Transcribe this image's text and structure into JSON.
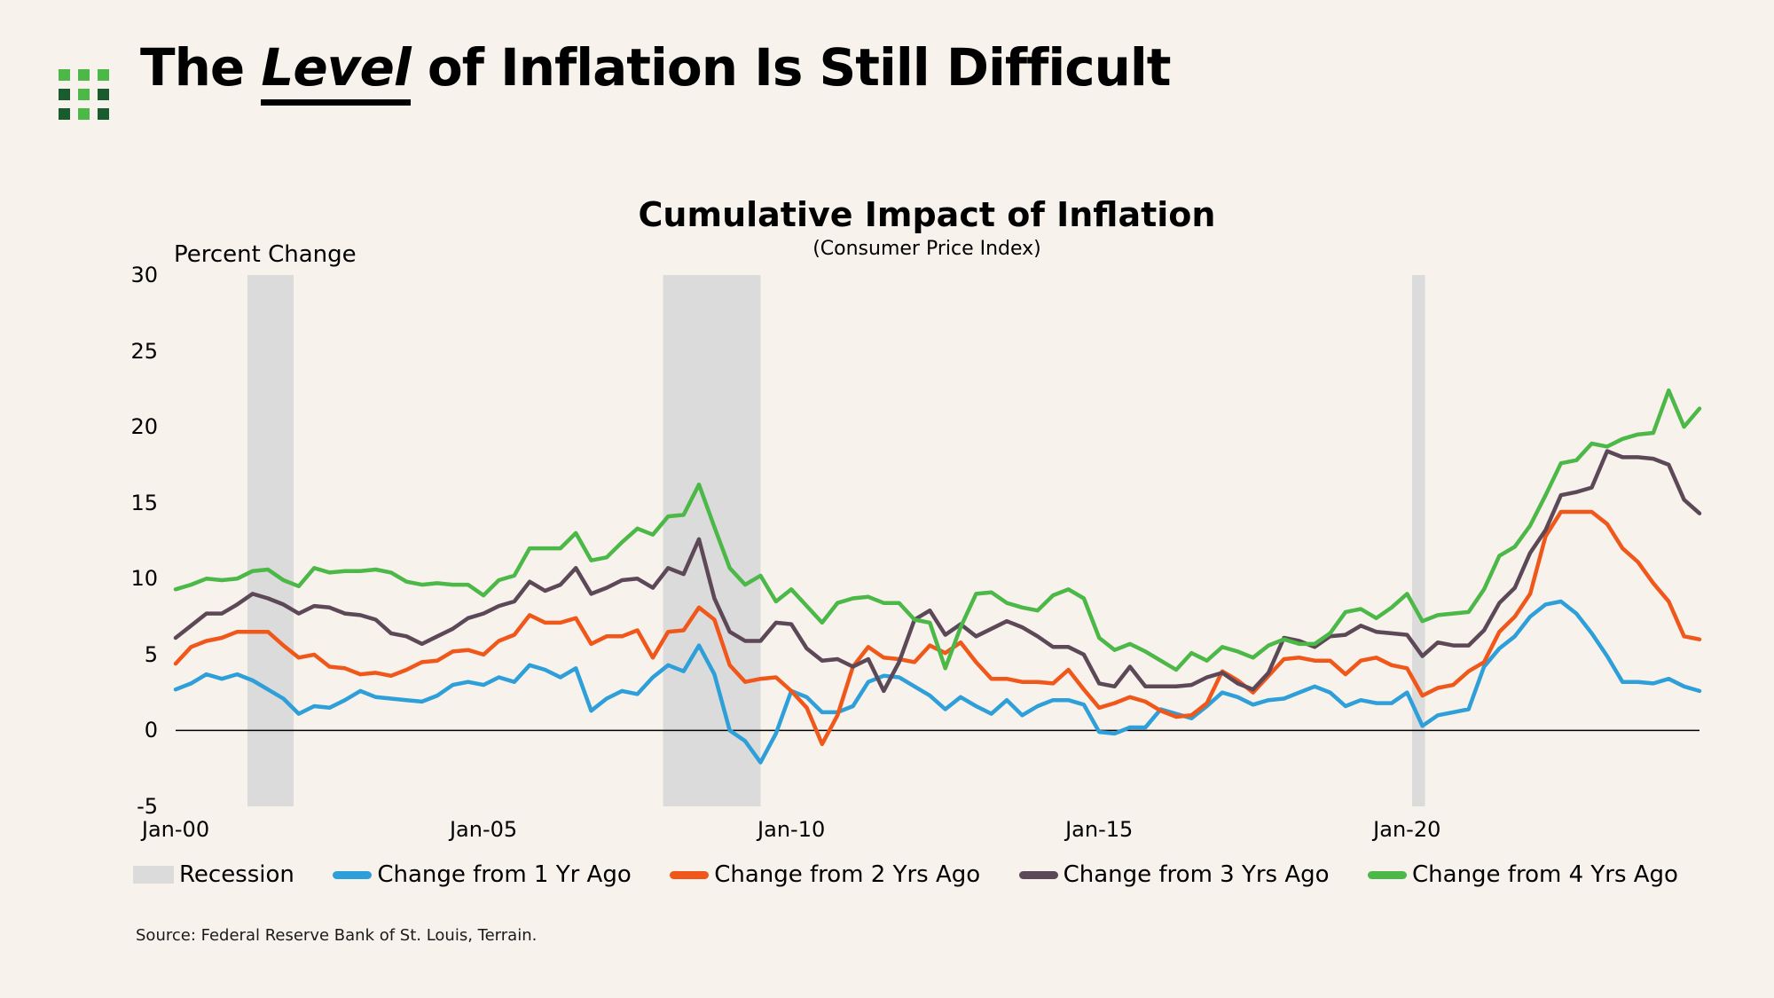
{
  "page": {
    "background": "#F7F2EC"
  },
  "header": {
    "logo": {
      "light_color": "#4CB848",
      "dark_color": "#1A5C2E",
      "pattern": [
        [
          "light",
          "light",
          "light"
        ],
        [
          "dark",
          "light",
          "dark"
        ],
        [
          "dark",
          "light",
          "dark"
        ]
      ]
    },
    "title": {
      "pre": "The ",
      "emphasis": "Level",
      "post": " of Inflation Is Still Difficult"
    }
  },
  "chart": {
    "title": "Cumulative Impact of Inflation",
    "subtitle": "(Consumer Price Index)",
    "y_unit_label": "Percent Change",
    "source": "Source: Federal Reserve Bank of St. Louis, Terrain."
  },
  "chart_data": {
    "type": "line",
    "title": "Cumulative Impact of Inflation",
    "subtitle": "(Consumer Price Index)",
    "ylabel": "Percent Change",
    "ylim": [
      -5,
      30
    ],
    "y_ticks": [
      30,
      25,
      20,
      15,
      10,
      5,
      0,
      -5
    ],
    "x_unit": "months since Jan-2000, quarterly samples",
    "x_tick_labels": [
      "Jan-00",
      "Jan-05",
      "Jan-10",
      "Jan-15",
      "Jan-20"
    ],
    "x_tick_months": [
      0,
      60,
      120,
      180,
      240
    ],
    "x_months": [
      0,
      3,
      6,
      9,
      12,
      15,
      18,
      21,
      24,
      27,
      30,
      33,
      36,
      39,
      42,
      45,
      48,
      51,
      54,
      57,
      60,
      63,
      66,
      69,
      72,
      75,
      78,
      81,
      84,
      87,
      90,
      93,
      96,
      99,
      102,
      105,
      108,
      111,
      114,
      117,
      120,
      123,
      126,
      129,
      132,
      135,
      138,
      141,
      144,
      147,
      150,
      153,
      156,
      159,
      162,
      165,
      168,
      171,
      174,
      177,
      180,
      183,
      186,
      189,
      192,
      195,
      198,
      201,
      204,
      207,
      210,
      213,
      216,
      219,
      222,
      225,
      228,
      231,
      234,
      237,
      240,
      243,
      246,
      249,
      252,
      255,
      258,
      261,
      264,
      267,
      270,
      273,
      276,
      279,
      282,
      285,
      288,
      291,
      294,
      297
    ],
    "grid": "off",
    "legend_position": "bottom",
    "zero_line": true,
    "recessions": {
      "label": "Recession",
      "color": "#DBDBDB",
      "bands_months": [
        [
          14,
          23
        ],
        [
          95,
          114
        ],
        [
          241,
          243.5
        ]
      ]
    },
    "series": [
      {
        "name": "Change from 1 Yr Ago",
        "color": "#2E9FD8",
        "values": [
          2.7,
          3.1,
          3.7,
          3.4,
          3.7,
          3.3,
          2.7,
          2.1,
          1.1,
          1.6,
          1.5,
          2.0,
          2.6,
          2.2,
          2.1,
          2.0,
          1.9,
          2.3,
          3.0,
          3.2,
          3.0,
          3.5,
          3.2,
          4.3,
          4.0,
          3.5,
          4.1,
          1.3,
          2.1,
          2.6,
          2.4,
          3.5,
          4.3,
          3.9,
          5.6,
          3.7,
          0.0,
          -0.7,
          -2.1,
          -0.2,
          2.6,
          2.2,
          1.2,
          1.2,
          1.6,
          3.2,
          3.6,
          3.5,
          2.9,
          2.3,
          1.4,
          2.2,
          1.6,
          1.1,
          2.0,
          1.0,
          1.6,
          2.0,
          2.0,
          1.7,
          -0.1,
          -0.2,
          0.2,
          0.2,
          1.4,
          1.1,
          0.8,
          1.6,
          2.5,
          2.2,
          1.7,
          2.0,
          2.1,
          2.5,
          2.9,
          2.5,
          1.6,
          2.0,
          1.8,
          1.8,
          2.5,
          0.3,
          1.0,
          1.2,
          1.4,
          4.2,
          5.4,
          6.2,
          7.5,
          8.3,
          8.5,
          7.7,
          6.4,
          4.9,
          3.2,
          3.2,
          3.1,
          3.4,
          2.9,
          2.6
        ]
      },
      {
        "name": "Change from 2 Yrs Ago",
        "color": "#F0571A",
        "values": [
          4.4,
          5.5,
          5.9,
          6.1,
          6.5,
          6.5,
          6.5,
          5.6,
          4.8,
          5.0,
          4.2,
          4.1,
          3.7,
          3.8,
          3.6,
          4.0,
          4.5,
          4.6,
          5.2,
          5.3,
          5.0,
          5.9,
          6.3,
          7.6,
          7.1,
          7.1,
          7.4,
          5.7,
          6.2,
          6.2,
          6.6,
          4.8,
          6.5,
          6.6,
          8.1,
          7.3,
          4.3,
          3.2,
          3.4,
          3.5,
          2.6,
          1.5,
          -0.9,
          1.0,
          4.2,
          5.5,
          4.8,
          4.7,
          4.5,
          5.6,
          5.1,
          5.8,
          4.5,
          3.4,
          3.4,
          3.2,
          3.2,
          3.1,
          4.0,
          2.7,
          1.5,
          1.8,
          2.2,
          1.9,
          1.3,
          0.9,
          1.0,
          1.8,
          3.9,
          3.3,
          2.5,
          3.6,
          4.7,
          4.8,
          4.6,
          4.6,
          3.7,
          4.6,
          4.8,
          4.3,
          4.1,
          2.3,
          2.8,
          3.0,
          3.9,
          4.5,
          6.5,
          7.5,
          9.0,
          12.8,
          14.4,
          14.4,
          14.4,
          13.6,
          12.0,
          11.1,
          9.7,
          8.5,
          6.2,
          6.0
        ]
      },
      {
        "name": "Change from 3 Yrs Ago",
        "color": "#5C4857",
        "values": [
          6.1,
          6.9,
          7.7,
          7.7,
          8.3,
          9.0,
          8.7,
          8.3,
          7.7,
          8.2,
          8.1,
          7.7,
          7.6,
          7.3,
          6.4,
          6.2,
          5.7,
          6.2,
          6.7,
          7.4,
          7.7,
          8.2,
          8.5,
          9.8,
          9.2,
          9.6,
          10.7,
          9.0,
          9.4,
          9.9,
          10.0,
          9.4,
          10.7,
          10.3,
          12.6,
          8.7,
          6.5,
          5.9,
          5.9,
          7.1,
          7.0,
          5.4,
          4.6,
          4.7,
          4.2,
          4.7,
          2.6,
          4.5,
          7.3,
          7.9,
          6.3,
          7.0,
          6.2,
          6.7,
          7.2,
          6.8,
          6.2,
          5.5,
          5.5,
          5.0,
          3.1,
          2.9,
          4.2,
          2.9,
          2.9,
          2.9,
          3.0,
          3.5,
          3.8,
          3.1,
          2.7,
          3.8,
          6.1,
          5.9,
          5.5,
          6.2,
          6.3,
          6.9,
          6.5,
          6.4,
          6.3,
          4.9,
          5.8,
          5.6,
          5.6,
          6.6,
          8.4,
          9.4,
          11.7,
          13.2,
          15.5,
          15.7,
          16.0,
          18.4,
          18.0,
          18.0,
          17.9,
          17.5,
          15.2,
          14.3
        ]
      },
      {
        "name": "Change from 4 Yrs Ago",
        "color": "#4CB848",
        "values": [
          9.3,
          9.6,
          10.0,
          9.9,
          10.0,
          10.5,
          10.6,
          9.9,
          9.5,
          10.7,
          10.4,
          10.5,
          10.5,
          10.6,
          10.4,
          9.8,
          9.6,
          9.7,
          9.6,
          9.6,
          8.9,
          9.9,
          10.2,
          12.0,
          12.0,
          12.0,
          13.0,
          11.2,
          11.4,
          12.4,
          13.3,
          12.9,
          14.1,
          14.2,
          16.2,
          13.4,
          10.7,
          9.6,
          10.2,
          8.5,
          9.3,
          8.2,
          7.1,
          8.4,
          8.7,
          8.8,
          8.4,
          8.4,
          7.3,
          7.1,
          4.1,
          6.8,
          9.0,
          9.1,
          8.4,
          8.1,
          7.9,
          8.9,
          9.3,
          8.7,
          6.1,
          5.3,
          5.7,
          5.2,
          4.6,
          4.0,
          5.1,
          4.6,
          5.5,
          5.2,
          4.8,
          5.6,
          6.0,
          5.7,
          5.7,
          6.4,
          7.8,
          8.0,
          7.4,
          8.1,
          9.0,
          7.2,
          7.6,
          7.7,
          7.8,
          9.3,
          11.5,
          12.1,
          13.5,
          15.5,
          17.6,
          17.8,
          18.9,
          18.7,
          19.2,
          19.5,
          19.6,
          22.4,
          20.0,
          21.2
        ]
      }
    ]
  }
}
